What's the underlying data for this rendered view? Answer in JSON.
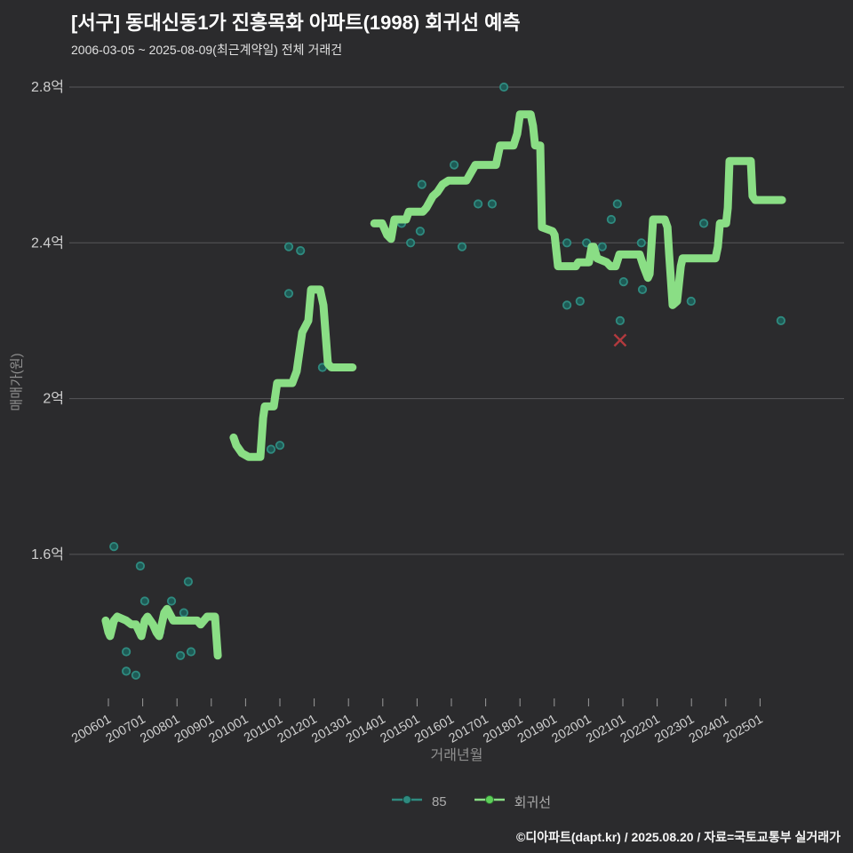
{
  "chart_data": {
    "type": "line+scatter",
    "title": "[서구] 동대신동1가 진흥목화 아파트(1998) 회귀선 예측",
    "subtitle": "2006-03-05 ~ 2025-08-09(최근계약일) 전체 거래건",
    "grid": "horizontal-only",
    "legend_position": "bottom-center",
    "colors": {
      "background": "#2b2b2d",
      "grid": "#57575a",
      "tick_text": "#cfcfcf",
      "axis_title": "#909090",
      "title": "#ffffff",
      "subtitle": "#e0e0e0",
      "legend_text": "#ababab",
      "footer_text": "#f5f5f5",
      "scatter_stroke": "#2f8a7f",
      "scatter_fill": "#1d5f5a",
      "regression_line": "#8ade85",
      "x_marker": "#b23a3e"
    },
    "axes": {
      "x": {
        "title": "거래년월",
        "ticks": [
          "200601",
          "200701",
          "200801",
          "200901",
          "201001",
          "201101",
          "201201",
          "201301",
          "201401",
          "201501",
          "201601",
          "201701",
          "201801",
          "201901",
          "202001",
          "202101",
          "202201",
          "202301",
          "202401",
          "202501"
        ],
        "range_years": [
          2005.0,
          2027.4
        ]
      },
      "y": {
        "title": "매매가(원)",
        "unit": "억",
        "ticks": [
          {
            "label": "2.8억",
            "value": 2.8
          },
          {
            "label": "2.4억",
            "value": 2.4
          },
          {
            "label": "2억",
            "value": 2.0
          },
          {
            "label": "1.6억",
            "value": 1.6
          }
        ],
        "range": [
          1.23,
          2.82
        ]
      }
    },
    "series": [
      {
        "name": "85",
        "type": "scatter",
        "points": [
          [
            2006.16,
            1.62
          ],
          [
            2006.52,
            1.35
          ],
          [
            2006.52,
            1.3
          ],
          [
            2006.8,
            1.29
          ],
          [
            2006.93,
            1.57
          ],
          [
            2007.06,
            1.48
          ],
          [
            2007.5,
            1.4
          ],
          [
            2007.84,
            1.48
          ],
          [
            2008.1,
            1.34
          ],
          [
            2008.2,
            1.45
          ],
          [
            2008.33,
            1.53
          ],
          [
            2008.41,
            1.35
          ],
          [
            2010.74,
            1.87
          ],
          [
            2011.0,
            1.88
          ],
          [
            2011.26,
            2.39
          ],
          [
            2011.26,
            2.27
          ],
          [
            2011.6,
            2.38
          ],
          [
            2012.24,
            2.08
          ],
          [
            2014.55,
            2.45
          ],
          [
            2014.81,
            2.4
          ],
          [
            2015.09,
            2.43
          ],
          [
            2015.14,
            2.55
          ],
          [
            2016.08,
            2.6
          ],
          [
            2016.31,
            2.39
          ],
          [
            2016.78,
            2.5
          ],
          [
            2017.19,
            2.5
          ],
          [
            2017.53,
            2.8
          ],
          [
            2019.37,
            2.4
          ],
          [
            2019.37,
            2.24
          ],
          [
            2019.75,
            2.25
          ],
          [
            2019.94,
            2.4
          ],
          [
            2020.4,
            2.39
          ],
          [
            2020.66,
            2.46
          ],
          [
            2020.84,
            2.5
          ],
          [
            2020.92,
            2.2
          ],
          [
            2021.02,
            2.3
          ],
          [
            2021.54,
            2.4
          ],
          [
            2021.57,
            2.28
          ],
          [
            2022.99,
            2.25
          ],
          [
            2023.36,
            2.45
          ],
          [
            2025.61,
            2.2
          ]
        ]
      },
      {
        "name": "회귀선",
        "type": "line",
        "width": 9,
        "segments": [
          [
            [
              2005.92,
              1.43
            ],
            [
              2006.0,
              1.4
            ],
            [
              2006.05,
              1.39
            ],
            [
              2006.16,
              1.43
            ],
            [
              2006.26,
              1.44
            ],
            [
              2006.52,
              1.43
            ],
            [
              2006.67,
              1.42
            ],
            [
              2006.8,
              1.42
            ],
            [
              2006.91,
              1.4
            ],
            [
              2006.96,
              1.39
            ],
            [
              2007.06,
              1.43
            ],
            [
              2007.14,
              1.44
            ],
            [
              2007.3,
              1.42
            ],
            [
              2007.4,
              1.4
            ],
            [
              2007.48,
              1.39
            ],
            [
              2007.63,
              1.45
            ],
            [
              2007.71,
              1.46
            ],
            [
              2007.89,
              1.43
            ],
            [
              2008.28,
              1.43
            ],
            [
              2008.59,
              1.43
            ],
            [
              2008.69,
              1.42
            ],
            [
              2008.88,
              1.44
            ],
            [
              2009.11,
              1.44
            ],
            [
              2009.14,
              1.4
            ],
            [
              2009.19,
              1.34
            ]
          ],
          [
            [
              2009.65,
              1.9
            ],
            [
              2009.73,
              1.88
            ],
            [
              2009.89,
              1.86
            ],
            [
              2010.09,
              1.85
            ],
            [
              2010.43,
              1.85
            ],
            [
              2010.51,
              1.95
            ],
            [
              2010.56,
              1.98
            ],
            [
              2010.82,
              1.98
            ],
            [
              2010.92,
              2.04
            ],
            [
              2011.36,
              2.04
            ],
            [
              2011.49,
              2.07
            ],
            [
              2011.65,
              2.17
            ],
            [
              2011.83,
              2.2
            ],
            [
              2011.91,
              2.28
            ],
            [
              2012.17,
              2.28
            ],
            [
              2012.27,
              2.24
            ],
            [
              2012.4,
              2.09
            ],
            [
              2012.5,
              2.08
            ],
            [
              2013.12,
              2.08
            ]
          ],
          [
            [
              2013.75,
              2.45
            ],
            [
              2013.98,
              2.45
            ],
            [
              2014.13,
              2.42
            ],
            [
              2014.24,
              2.41
            ],
            [
              2014.34,
              2.46
            ],
            [
              2014.68,
              2.46
            ],
            [
              2014.76,
              2.48
            ],
            [
              2015.17,
              2.48
            ],
            [
              2015.27,
              2.49
            ],
            [
              2015.46,
              2.52
            ],
            [
              2015.59,
              2.53
            ],
            [
              2015.74,
              2.55
            ],
            [
              2015.92,
              2.56
            ],
            [
              2016.44,
              2.56
            ],
            [
              2016.57,
              2.58
            ],
            [
              2016.7,
              2.6
            ],
            [
              2017.3,
              2.6
            ],
            [
              2017.42,
              2.65
            ],
            [
              2017.81,
              2.65
            ],
            [
              2017.92,
              2.68
            ],
            [
              2018.0,
              2.73
            ],
            [
              2018.31,
              2.73
            ],
            [
              2018.38,
              2.7
            ],
            [
              2018.44,
              2.65
            ],
            [
              2018.59,
              2.65
            ],
            [
              2018.64,
              2.44
            ],
            [
              2018.95,
              2.43
            ],
            [
              2019.01,
              2.42
            ],
            [
              2019.11,
              2.34
            ],
            [
              2019.63,
              2.34
            ],
            [
              2019.7,
              2.35
            ],
            [
              2020.01,
              2.35
            ],
            [
              2020.09,
              2.39
            ],
            [
              2020.15,
              2.39
            ],
            [
              2020.25,
              2.36
            ],
            [
              2020.53,
              2.35
            ],
            [
              2020.64,
              2.34
            ],
            [
              2020.79,
              2.34
            ],
            [
              2020.9,
              2.37
            ],
            [
              2021.49,
              2.37
            ],
            [
              2021.6,
              2.34
            ],
            [
              2021.73,
              2.31
            ],
            [
              2021.78,
              2.32
            ],
            [
              2021.88,
              2.46
            ],
            [
              2022.22,
              2.46
            ],
            [
              2022.3,
              2.44
            ],
            [
              2022.35,
              2.37
            ],
            [
              2022.45,
              2.24
            ],
            [
              2022.58,
              2.25
            ],
            [
              2022.69,
              2.34
            ],
            [
              2022.74,
              2.36
            ],
            [
              2023.7,
              2.36
            ],
            [
              2023.77,
              2.39
            ],
            [
              2023.83,
              2.45
            ],
            [
              2024.01,
              2.45
            ],
            [
              2024.06,
              2.49
            ],
            [
              2024.11,
              2.61
            ],
            [
              2024.73,
              2.61
            ],
            [
              2024.78,
              2.52
            ],
            [
              2024.86,
              2.51
            ],
            [
              2025.64,
              2.51
            ]
          ]
        ]
      },
      {
        "type": "x_marker",
        "points": [
          [
            2020.92,
            2.15
          ]
        ]
      }
    ]
  },
  "legend": {
    "items": [
      {
        "label": "85"
      },
      {
        "label": "회귀선"
      }
    ]
  },
  "footer": {
    "credit": "©디아파트(dapt.kr) / 2025.08.20 / 자료=국토교통부 실거래가"
  }
}
